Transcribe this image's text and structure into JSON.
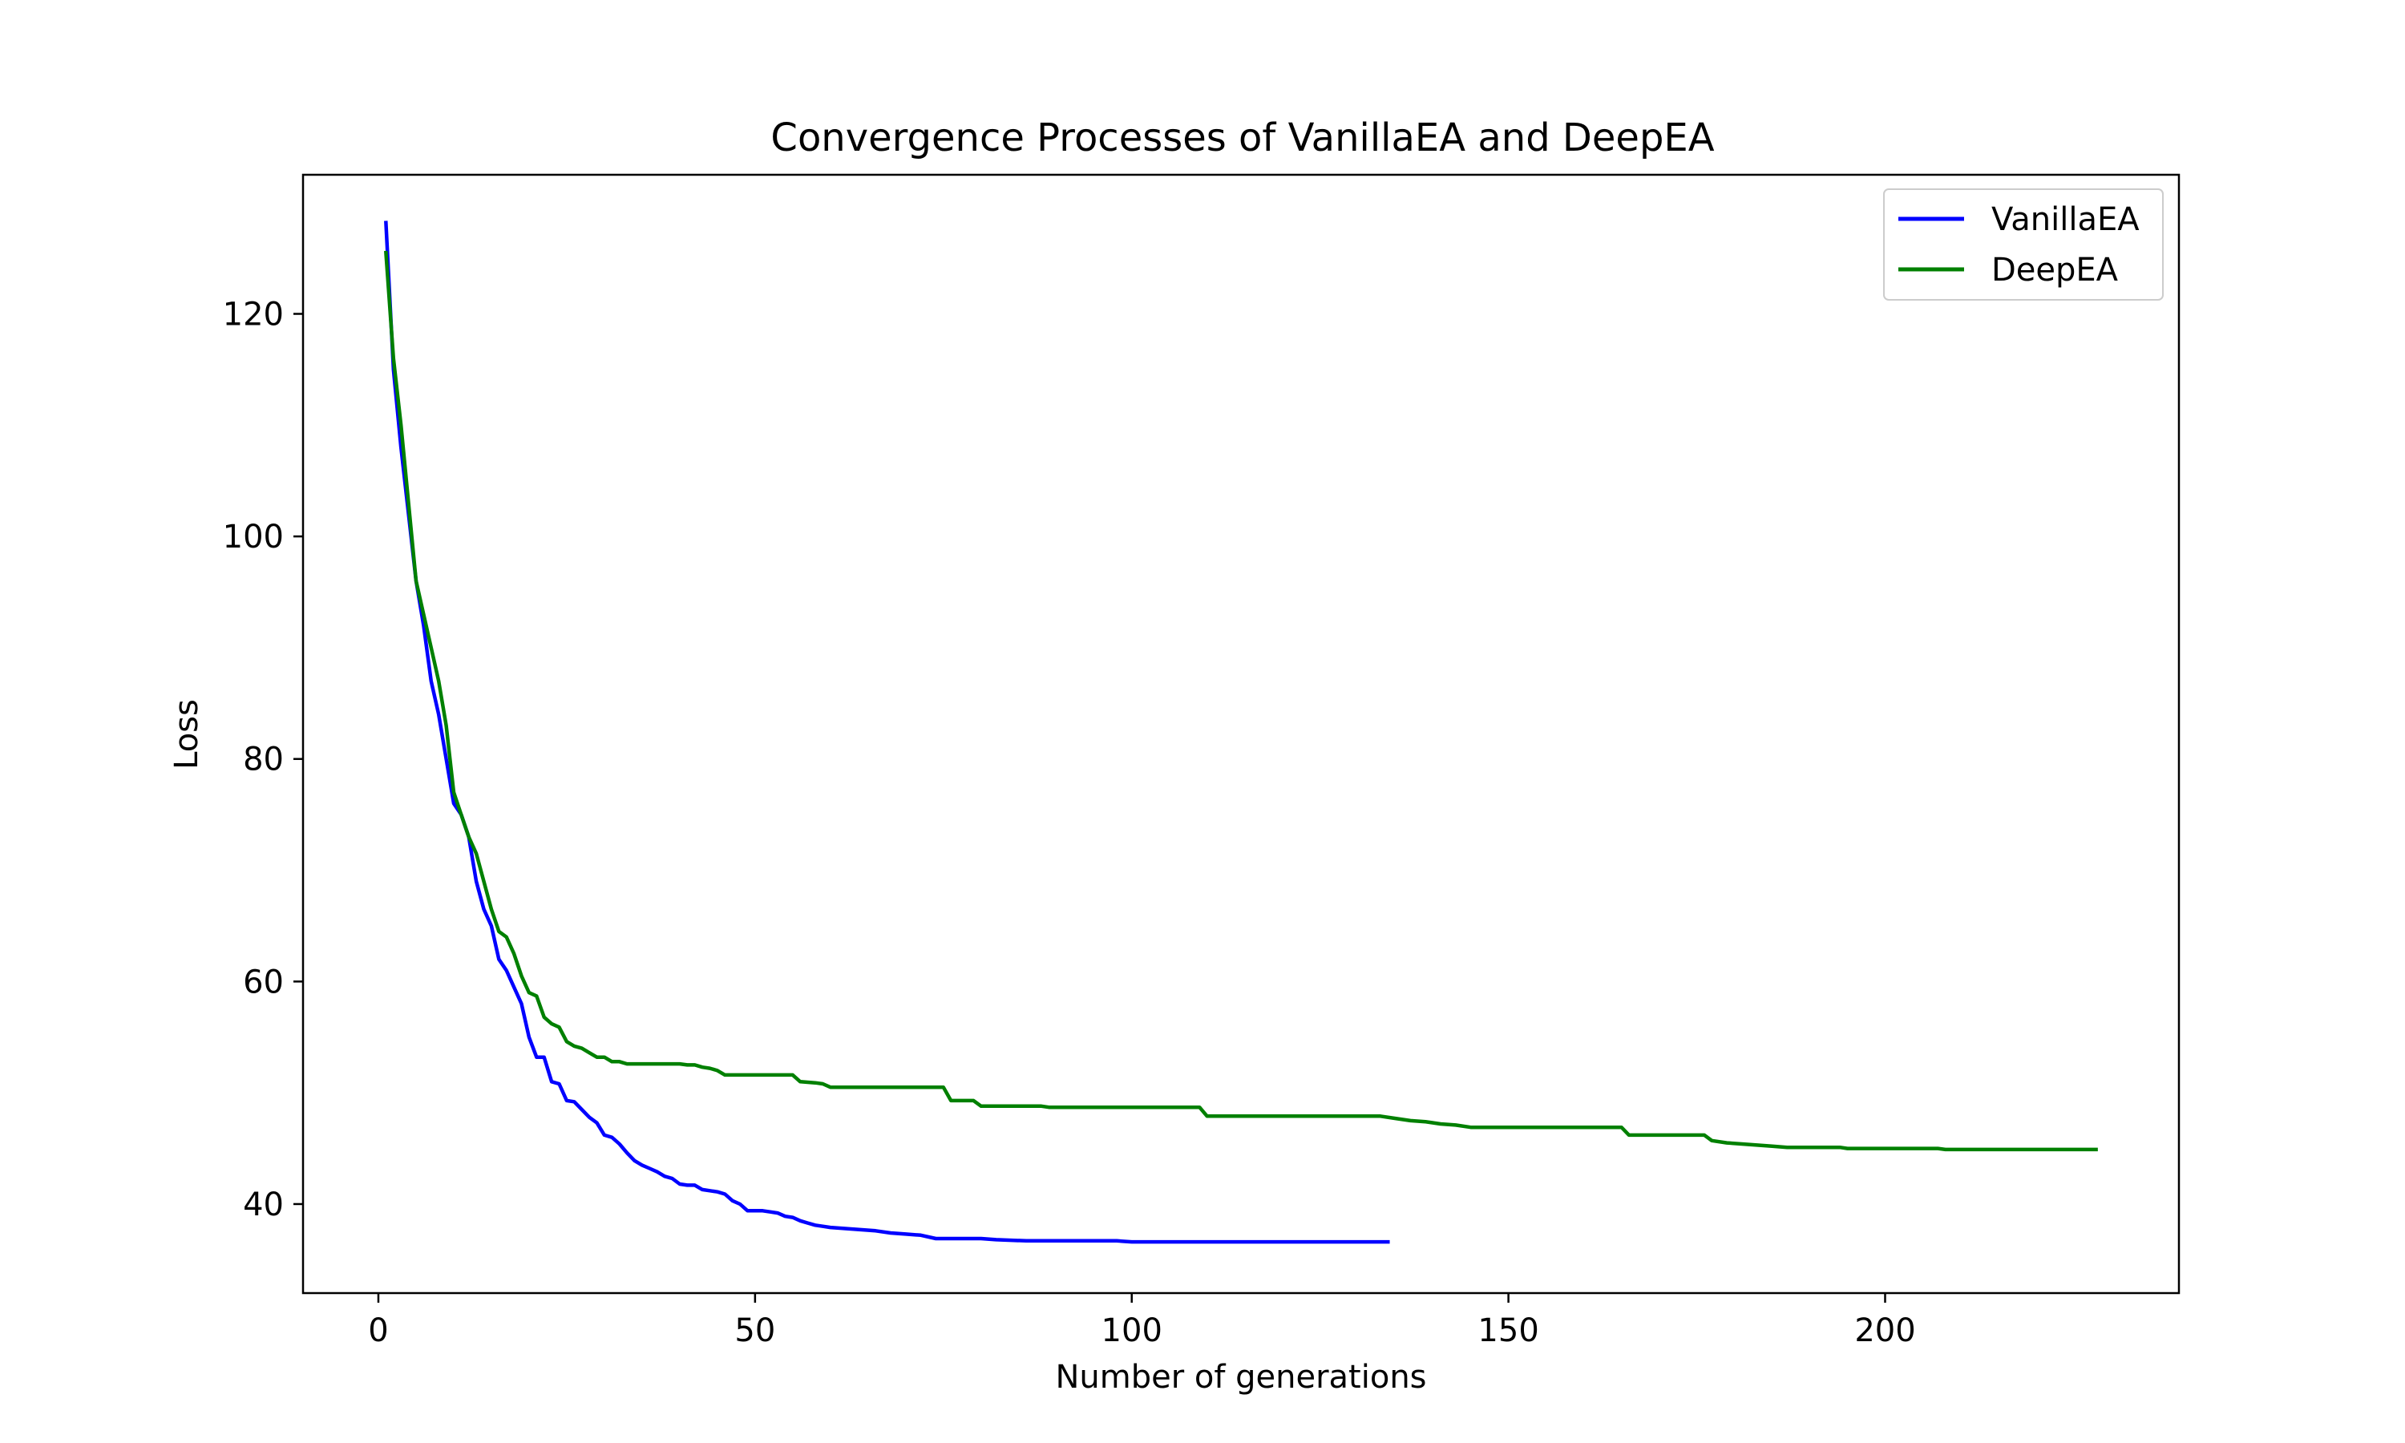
{
  "chart_data": {
    "type": "line",
    "title": "Convergence Processes of VanillaEA and DeepEA",
    "xlabel": "Number of generations",
    "ylabel": "Loss",
    "xlim": [
      -10,
      239
    ],
    "ylim": [
      32,
      132.5
    ],
    "xticks": [
      0,
      50,
      100,
      150,
      200
    ],
    "yticks": [
      40,
      60,
      80,
      100,
      120
    ],
    "grid": false,
    "legend": "top-right",
    "series": [
      {
        "name": "VanillaEA",
        "color": "#0000ff",
        "points": [
          [
            1,
            128.2
          ],
          [
            2,
            115
          ],
          [
            3,
            108
          ],
          [
            4,
            102
          ],
          [
            5,
            96
          ],
          [
            6,
            92
          ],
          [
            7,
            87
          ],
          [
            8,
            84
          ],
          [
            9,
            80
          ],
          [
            10,
            76
          ],
          [
            11,
            75
          ],
          [
            12,
            73
          ],
          [
            13,
            69
          ],
          [
            14,
            66.5
          ],
          [
            15,
            65
          ],
          [
            16,
            62
          ],
          [
            17,
            61
          ],
          [
            18,
            59.5
          ],
          [
            19,
            58
          ],
          [
            20,
            55
          ],
          [
            21,
            53.2
          ],
          [
            22,
            53.2
          ],
          [
            23,
            51
          ],
          [
            24,
            50.8
          ],
          [
            25,
            49.3
          ],
          [
            26,
            49.2
          ],
          [
            27,
            48.5
          ],
          [
            28,
            47.8
          ],
          [
            29,
            47.3
          ],
          [
            30,
            46.2
          ],
          [
            31,
            46
          ],
          [
            32,
            45.4
          ],
          [
            33,
            44.6
          ],
          [
            34,
            43.9
          ],
          [
            35,
            43.5
          ],
          [
            36,
            43.2
          ],
          [
            37,
            42.9
          ],
          [
            38,
            42.5
          ],
          [
            39,
            42.3
          ],
          [
            40,
            41.8
          ],
          [
            41,
            41.7
          ],
          [
            42,
            41.7
          ],
          [
            43,
            41.3
          ],
          [
            44,
            41.2
          ],
          [
            45,
            41.1
          ],
          [
            46,
            40.9
          ],
          [
            47,
            40.3
          ],
          [
            48,
            40
          ],
          [
            49,
            39.4
          ],
          [
            50,
            39.4
          ],
          [
            51,
            39.4
          ],
          [
            52,
            39.3
          ],
          [
            53,
            39.2
          ],
          [
            54,
            38.9
          ],
          [
            55,
            38.8
          ],
          [
            56,
            38.5
          ],
          [
            57,
            38.3
          ],
          [
            58,
            38.1
          ],
          [
            59,
            38
          ],
          [
            60,
            37.9
          ],
          [
            62,
            37.8
          ],
          [
            64,
            37.7
          ],
          [
            66,
            37.6
          ],
          [
            68,
            37.4
          ],
          [
            70,
            37.3
          ],
          [
            72,
            37.2
          ],
          [
            74,
            36.9
          ],
          [
            80,
            36.9
          ],
          [
            82,
            36.8
          ],
          [
            86,
            36.7
          ],
          [
            98,
            36.7
          ],
          [
            100,
            36.6
          ],
          [
            134,
            36.6
          ]
        ]
      },
      {
        "name": "DeepEA",
        "color": "#008000",
        "points": [
          [
            1,
            125.5
          ],
          [
            2,
            116
          ],
          [
            3,
            110
          ],
          [
            4,
            103
          ],
          [
            5,
            96
          ],
          [
            6,
            93
          ],
          [
            7,
            90
          ],
          [
            8,
            87
          ],
          [
            9,
            83
          ],
          [
            10,
            77
          ],
          [
            11,
            75
          ],
          [
            12,
            73
          ],
          [
            13,
            71.5
          ],
          [
            14,
            69
          ],
          [
            15,
            66.5
          ],
          [
            16,
            64.5
          ],
          [
            17,
            64
          ],
          [
            18,
            62.5
          ],
          [
            19,
            60.5
          ],
          [
            20,
            59
          ],
          [
            21,
            58.7
          ],
          [
            22,
            56.8
          ],
          [
            23,
            56.2
          ],
          [
            24,
            55.9
          ],
          [
            25,
            54.6
          ],
          [
            26,
            54.2
          ],
          [
            27,
            54
          ],
          [
            28,
            53.6
          ],
          [
            29,
            53.2
          ],
          [
            30,
            53.2
          ],
          [
            31,
            52.8
          ],
          [
            32,
            52.8
          ],
          [
            33,
            52.6
          ],
          [
            40,
            52.6
          ],
          [
            41,
            52.5
          ],
          [
            42,
            52.5
          ],
          [
            43,
            52.3
          ],
          [
            44,
            52.2
          ],
          [
            45,
            52
          ],
          [
            46,
            51.6
          ],
          [
            55,
            51.6
          ],
          [
            56,
            51
          ],
          [
            58,
            50.9
          ],
          [
            59,
            50.8
          ],
          [
            60,
            50.5
          ],
          [
            75,
            50.5
          ],
          [
            76,
            49.3
          ],
          [
            79,
            49.3
          ],
          [
            80,
            48.8
          ],
          [
            88,
            48.8
          ],
          [
            89,
            48.7
          ],
          [
            109,
            48.7
          ],
          [
            110,
            47.9
          ],
          [
            133,
            47.9
          ],
          [
            135,
            47.7
          ],
          [
            137,
            47.5
          ],
          [
            139,
            47.4
          ],
          [
            141,
            47.2
          ],
          [
            143,
            47.1
          ],
          [
            145,
            46.9
          ],
          [
            165,
            46.9
          ],
          [
            166,
            46.2
          ],
          [
            176,
            46.2
          ],
          [
            177,
            45.7
          ],
          [
            179,
            45.5
          ],
          [
            181,
            45.4
          ],
          [
            183,
            45.3
          ],
          [
            185,
            45.2
          ],
          [
            187,
            45.1
          ],
          [
            194,
            45.1
          ],
          [
            195,
            45
          ],
          [
            207,
            45
          ],
          [
            208,
            44.9
          ],
          [
            228,
            44.9
          ]
        ]
      }
    ]
  }
}
